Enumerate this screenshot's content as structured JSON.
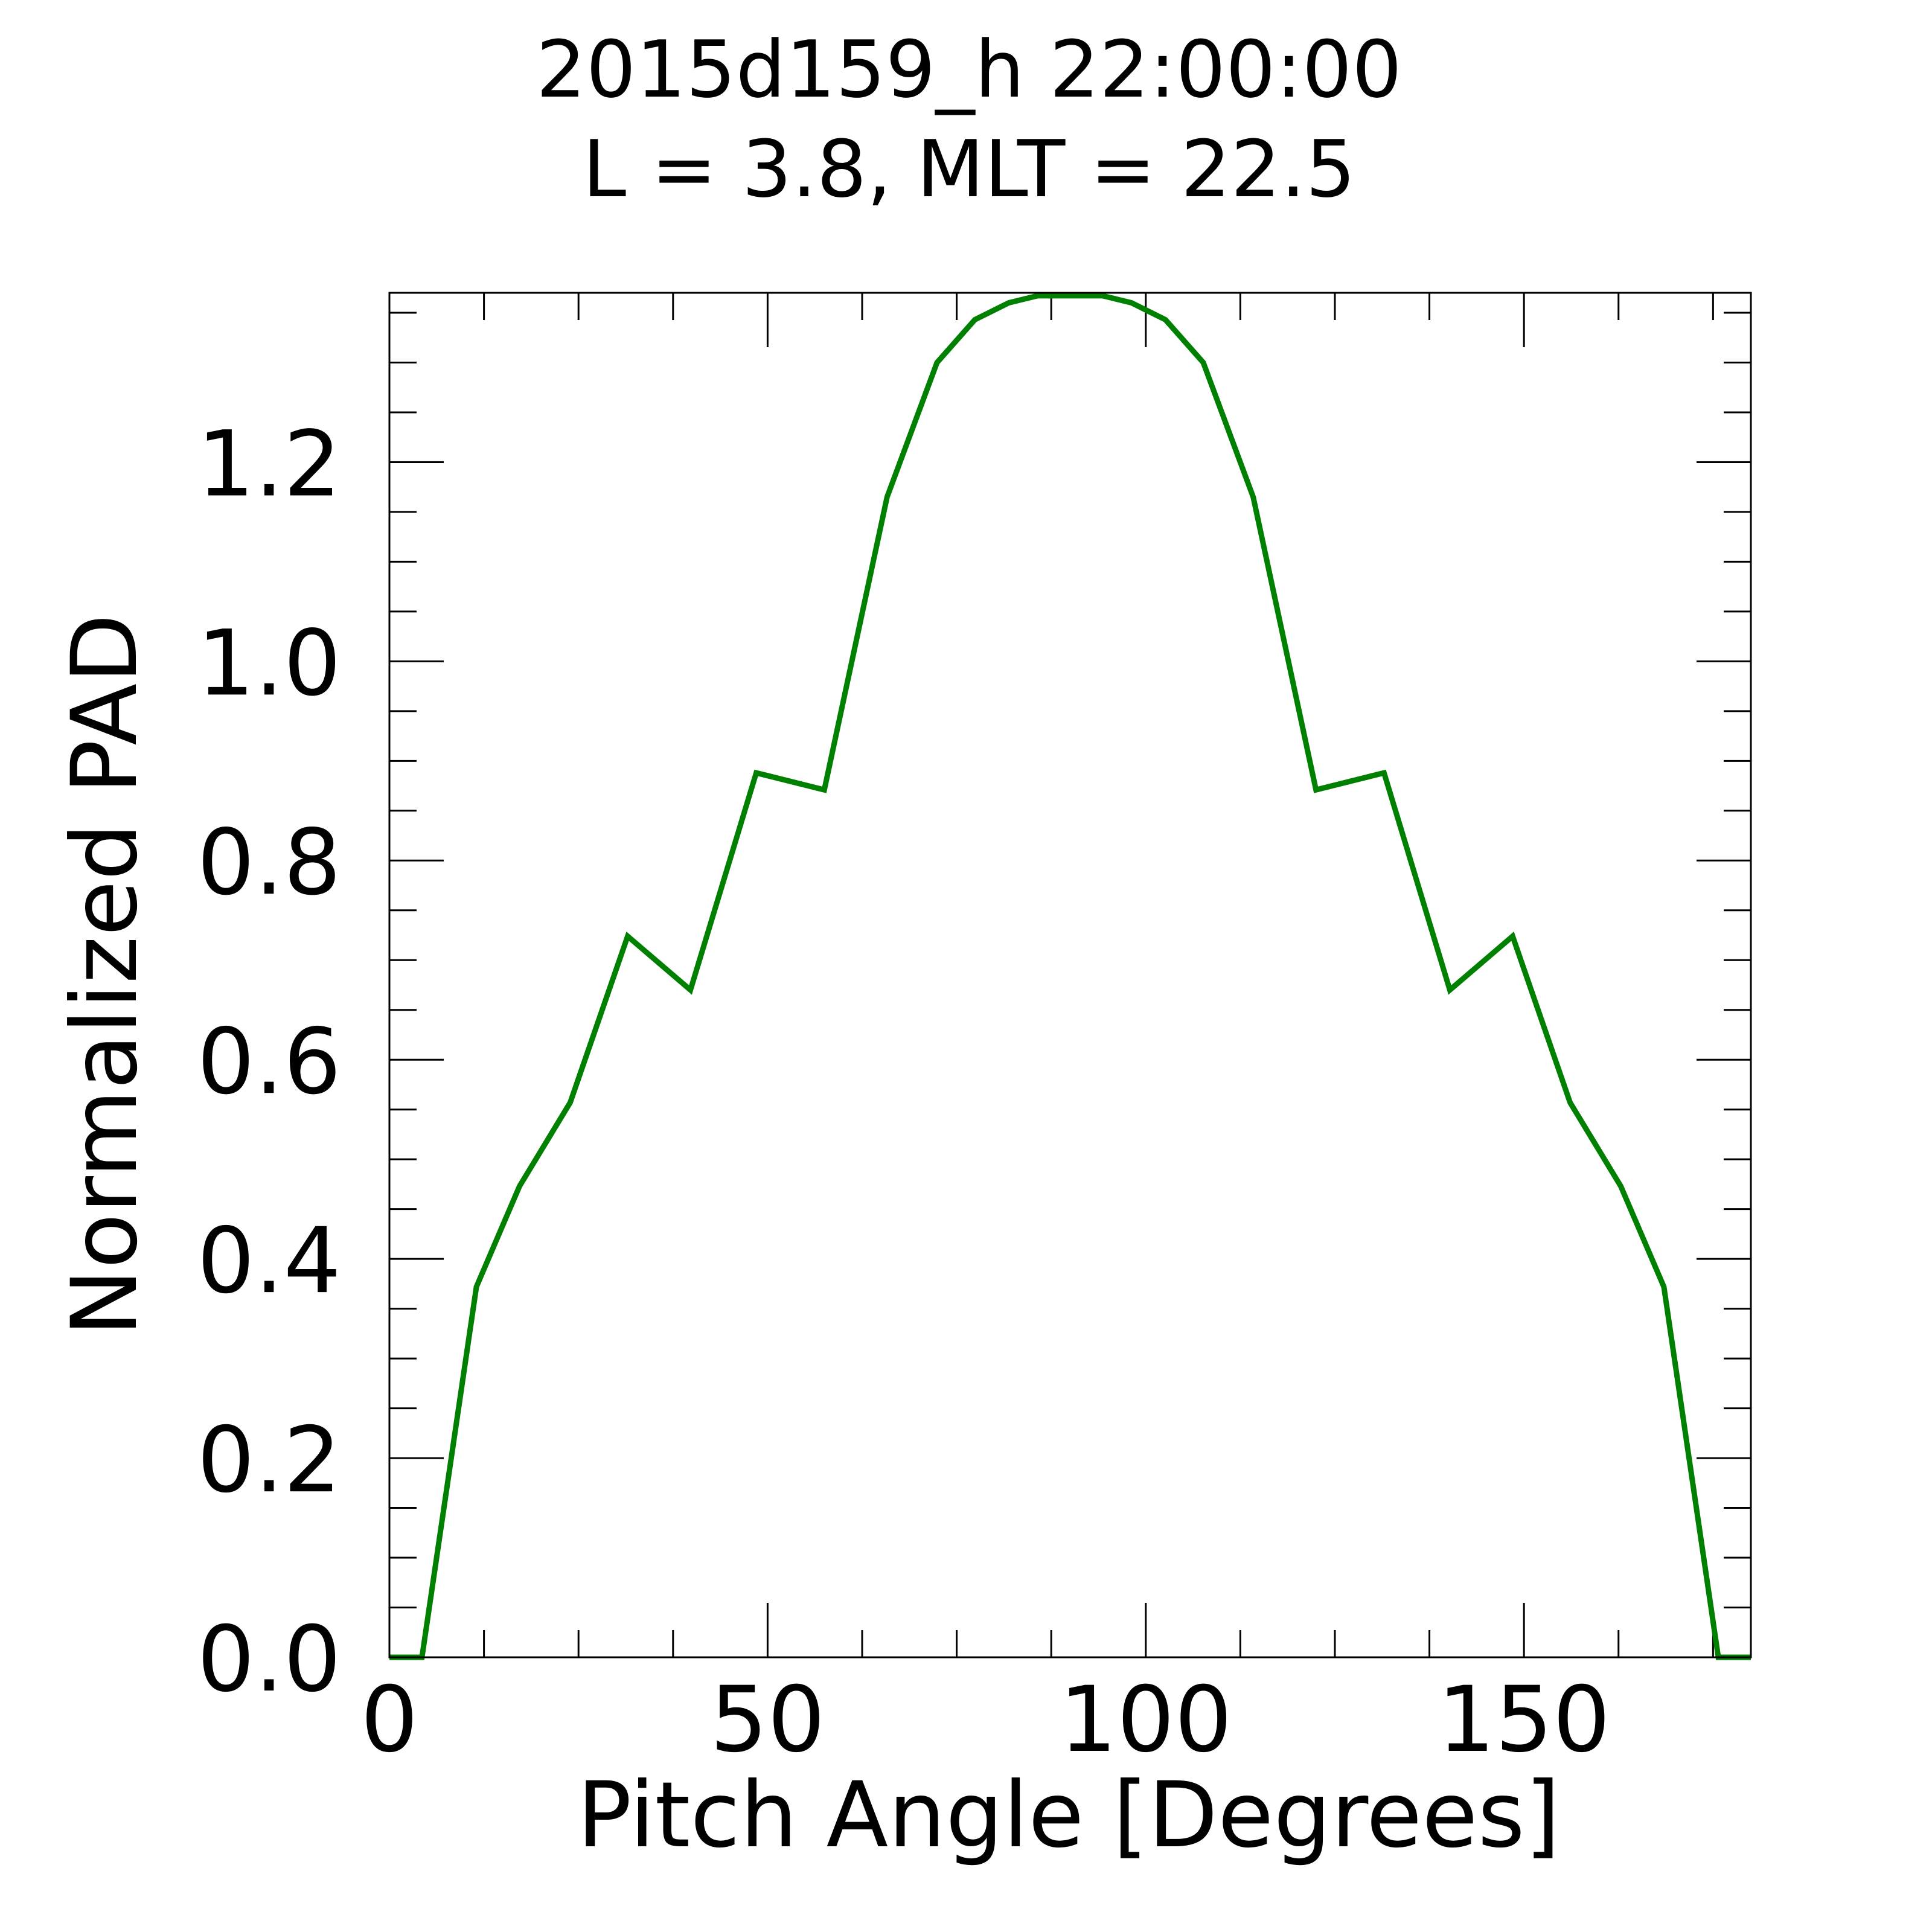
{
  "chart_data": {
    "type": "line",
    "title": "2015d159_h  22:00:00",
    "subtitle": "L = 3.8, MLT = 22.5",
    "xlabel": "Pitch Angle [Degrees]",
    "ylabel": "Normalized PAD",
    "xlim": [
      0,
      180
    ],
    "ylim": [
      0,
      1.37
    ],
    "xticks": [
      0,
      50,
      100,
      150
    ],
    "xtick_labels": [
      "0",
      "50",
      "100",
      "150"
    ],
    "yticks": [
      0.0,
      0.2,
      0.4,
      0.6,
      0.8,
      1.0,
      1.2
    ],
    "ytick_labels": [
      "0.0",
      "0.2",
      "0.4",
      "0.6",
      "0.8",
      "1.0",
      "1.2"
    ],
    "grid": false,
    "series": [
      {
        "color": "#008000",
        "x": [
          0,
          4.3,
          11.5,
          17.2,
          23.9,
          31.5,
          39.8,
          48.5,
          57.5,
          65.8,
          72.4,
          77.4,
          81.9,
          85.7,
          94.3,
          98.1,
          102.6,
          107.6,
          114.2,
          122.5,
          131.5,
          140.2,
          148.5,
          156.1,
          162.8,
          168.5,
          175.7,
          180
        ],
        "y": [
          0,
          0,
          0.372,
          0.473,
          0.557,
          0.724,
          0.67,
          0.888,
          0.871,
          1.165,
          1.3,
          1.343,
          1.36,
          1.367,
          1.367,
          1.36,
          1.343,
          1.3,
          1.165,
          0.871,
          0.888,
          0.67,
          0.724,
          0.557,
          0.473,
          0.372,
          0,
          0
        ]
      }
    ]
  }
}
